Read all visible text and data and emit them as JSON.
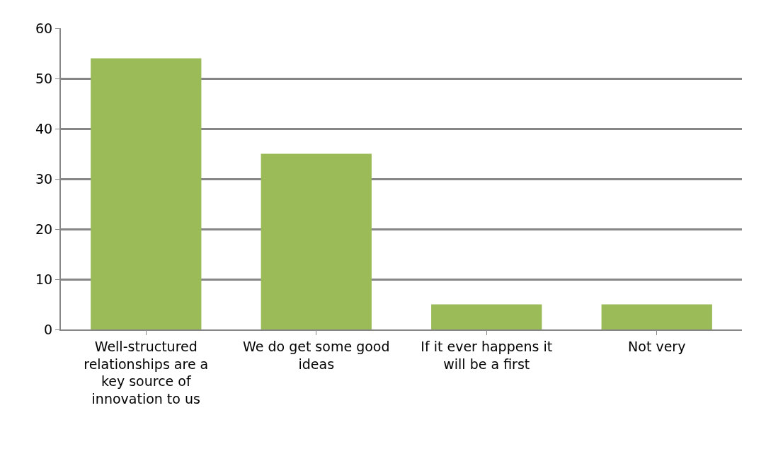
{
  "chart_data": {
    "type": "bar",
    "categories": [
      "Well-structured relationships are a key source of innovation to us",
      "We do get some good ideas",
      "If it ever happens it will be a first",
      "Not very"
    ],
    "values": [
      54,
      35,
      5,
      5
    ],
    "color": "#9bbb59",
    "ylim": [
      0,
      60
    ],
    "yticks": [
      0,
      10,
      20,
      30,
      40,
      50,
      60
    ],
    "grid": "y"
  }
}
